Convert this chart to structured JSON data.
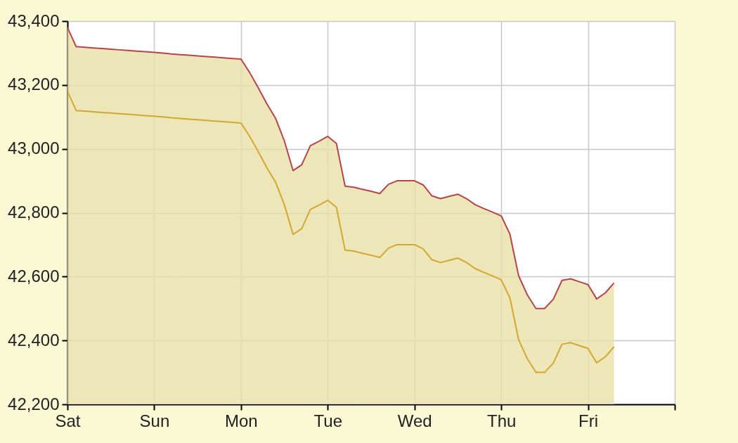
{
  "chart_data": {
    "type": "area",
    "categories": [
      "Sat",
      null,
      null,
      null,
      null,
      null,
      null,
      null,
      null,
      null,
      "Sun",
      null,
      null,
      null,
      null,
      null,
      null,
      null,
      null,
      null,
      "Mon",
      null,
      null,
      null,
      null,
      null,
      null,
      null,
      null,
      null,
      "Tue",
      null,
      null,
      null,
      null,
      null,
      null,
      null,
      null,
      null,
      "Wed",
      null,
      null,
      null,
      null,
      null,
      null,
      null,
      null,
      null,
      "Thu",
      null,
      null,
      null,
      null,
      null,
      null,
      null,
      null,
      null,
      "Fri",
      null,
      null,
      null,
      null,
      null,
      null,
      null,
      null,
      null,
      null
    ],
    "series": [
      {
        "color": "#b5454a",
        "values": [
          43380,
          43320,
          43318,
          43316,
          43314,
          43312,
          43310,
          43308,
          43306,
          43304,
          43302,
          43300,
          43297,
          43295,
          43293,
          43291,
          43289,
          43287,
          43285,
          43283,
          43281,
          43239,
          43191,
          43140,
          43095,
          43025,
          42932,
          42950,
          43010,
          43024,
          43039,
          43017,
          42883,
          42880,
          42873,
          42867,
          42860,
          42889,
          42900,
          42900,
          42900,
          42887,
          42853,
          42844,
          42851,
          42858,
          42844,
          42825,
          42813,
          42802,
          42790,
          42733,
          42603,
          42543,
          42500,
          42500,
          42529,
          42588,
          42593,
          42584,
          42575,
          42530,
          42549,
          42580,
          null,
          null,
          null,
          null,
          null,
          null,
          null
        ]
      },
      {
        "type": "line",
        "color": "#d4a830",
        "values": [
          43180,
          43120,
          43118,
          43116,
          43114,
          43112,
          43110,
          43108,
          43106,
          43104,
          43102,
          43100,
          43097,
          43095,
          43093,
          43091,
          43089,
          43087,
          43085,
          43083,
          43081,
          43039,
          42991,
          42940,
          42895,
          42825,
          42732,
          42750,
          42810,
          42824,
          42839,
          42817,
          42683,
          42680,
          42673,
          42667,
          42660,
          42689,
          42700,
          42700,
          42700,
          42687,
          42653,
          42644,
          42651,
          42658,
          42644,
          42625,
          42613,
          42602,
          42590,
          42533,
          42403,
          42343,
          42300,
          42300,
          42329,
          42388,
          42393,
          42384,
          42375,
          42330,
          42349,
          42380,
          null,
          null,
          null,
          null,
          null,
          null,
          null
        ]
      }
    ],
    "ylim": [
      42200,
      43400
    ],
    "yticks": [
      {
        "value": 42200,
        "label": "42,200"
      },
      {
        "value": 42400,
        "label": "42,400"
      },
      {
        "value": 42600,
        "label": "42,600"
      },
      {
        "value": 42800,
        "label": "42,800"
      },
      {
        "value": 43000,
        "label": "43,000"
      },
      {
        "value": 43200,
        "label": "43,200"
      },
      {
        "value": 43400,
        "label": "43,400"
      }
    ],
    "grid": true,
    "marker": "none"
  }
}
